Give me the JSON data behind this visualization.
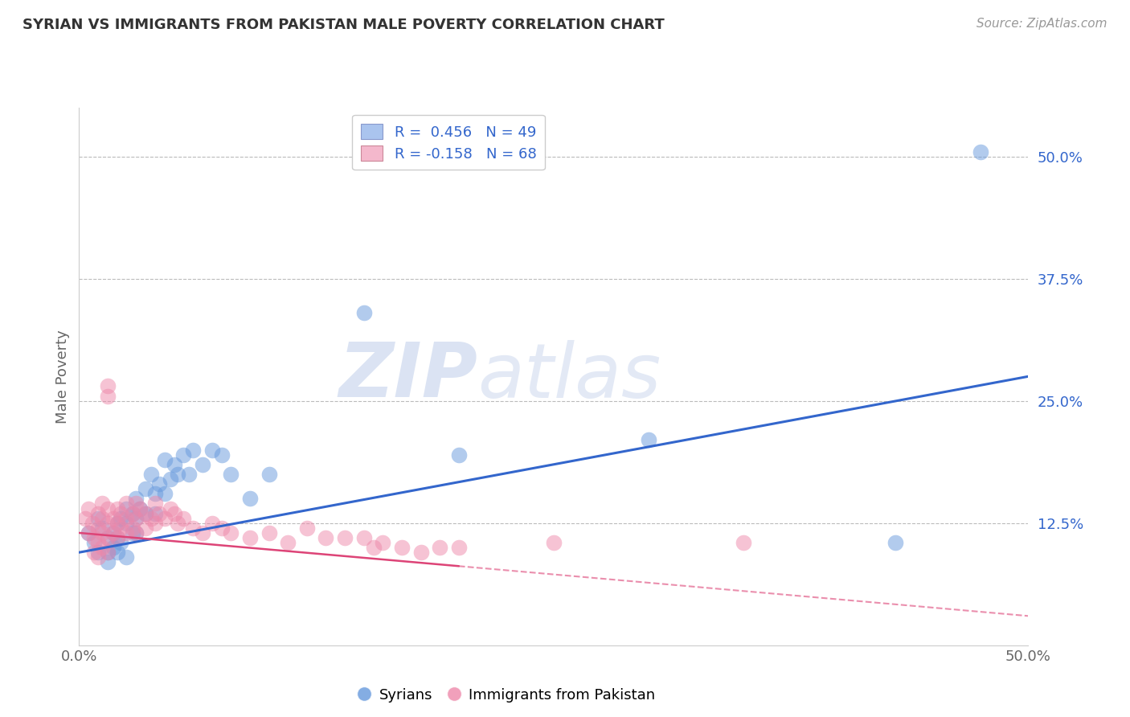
{
  "title": "SYRIAN VS IMMIGRANTS FROM PAKISTAN MALE POVERTY CORRELATION CHART",
  "source": "Source: ZipAtlas.com",
  "ylabel": "Male Poverty",
  "ytick_labels": [
    "12.5%",
    "25.0%",
    "37.5%",
    "50.0%"
  ],
  "ytick_values": [
    0.125,
    0.25,
    0.375,
    0.5
  ],
  "xlim": [
    0.0,
    0.5
  ],
  "ylim": [
    0.0,
    0.55
  ],
  "blue_line_start": 0.095,
  "blue_line_end": 0.275,
  "pink_line_start_solid": 0.115,
  "pink_line_end_solid": 0.1,
  "pink_line_end_solid_x": 0.2,
  "pink_line_start_dash": 0.1,
  "pink_line_end_dash": 0.03,
  "blue_color": "#6699dd",
  "pink_color": "#ee88aa",
  "blue_line_color": "#3366cc",
  "pink_line_color": "#dd4477",
  "watermark_zip": "ZIP",
  "watermark_atlas": "atlas",
  "syrian_scatter": [
    [
      0.005,
      0.115
    ],
    [
      0.008,
      0.105
    ],
    [
      0.01,
      0.13
    ],
    [
      0.01,
      0.095
    ],
    [
      0.012,
      0.12
    ],
    [
      0.015,
      0.11
    ],
    [
      0.015,
      0.095
    ],
    [
      0.015,
      0.085
    ],
    [
      0.018,
      0.115
    ],
    [
      0.018,
      0.1
    ],
    [
      0.02,
      0.125
    ],
    [
      0.02,
      0.11
    ],
    [
      0.02,
      0.095
    ],
    [
      0.022,
      0.13
    ],
    [
      0.022,
      0.105
    ],
    [
      0.025,
      0.14
    ],
    [
      0.025,
      0.125
    ],
    [
      0.025,
      0.09
    ],
    [
      0.028,
      0.135
    ],
    [
      0.028,
      0.115
    ],
    [
      0.03,
      0.15
    ],
    [
      0.03,
      0.13
    ],
    [
      0.03,
      0.115
    ],
    [
      0.032,
      0.14
    ],
    [
      0.035,
      0.16
    ],
    [
      0.035,
      0.135
    ],
    [
      0.038,
      0.175
    ],
    [
      0.04,
      0.155
    ],
    [
      0.04,
      0.135
    ],
    [
      0.042,
      0.165
    ],
    [
      0.045,
      0.19
    ],
    [
      0.045,
      0.155
    ],
    [
      0.048,
      0.17
    ],
    [
      0.05,
      0.185
    ],
    [
      0.052,
      0.175
    ],
    [
      0.055,
      0.195
    ],
    [
      0.058,
      0.175
    ],
    [
      0.06,
      0.2
    ],
    [
      0.065,
      0.185
    ],
    [
      0.07,
      0.2
    ],
    [
      0.075,
      0.195
    ],
    [
      0.08,
      0.175
    ],
    [
      0.09,
      0.15
    ],
    [
      0.1,
      0.175
    ],
    [
      0.15,
      0.34
    ],
    [
      0.2,
      0.195
    ],
    [
      0.3,
      0.21
    ],
    [
      0.43,
      0.105
    ],
    [
      0.475,
      0.505
    ]
  ],
  "pakistan_scatter": [
    [
      0.003,
      0.13
    ],
    [
      0.005,
      0.14
    ],
    [
      0.005,
      0.115
    ],
    [
      0.007,
      0.125
    ],
    [
      0.008,
      0.11
    ],
    [
      0.008,
      0.095
    ],
    [
      0.01,
      0.135
    ],
    [
      0.01,
      0.12
    ],
    [
      0.01,
      0.105
    ],
    [
      0.01,
      0.09
    ],
    [
      0.012,
      0.145
    ],
    [
      0.012,
      0.13
    ],
    [
      0.012,
      0.115
    ],
    [
      0.012,
      0.1
    ],
    [
      0.015,
      0.265
    ],
    [
      0.015,
      0.255
    ],
    [
      0.015,
      0.14
    ],
    [
      0.015,
      0.125
    ],
    [
      0.015,
      0.11
    ],
    [
      0.015,
      0.095
    ],
    [
      0.018,
      0.13
    ],
    [
      0.018,
      0.115
    ],
    [
      0.02,
      0.14
    ],
    [
      0.02,
      0.125
    ],
    [
      0.02,
      0.11
    ],
    [
      0.022,
      0.135
    ],
    [
      0.022,
      0.12
    ],
    [
      0.025,
      0.145
    ],
    [
      0.025,
      0.13
    ],
    [
      0.025,
      0.115
    ],
    [
      0.028,
      0.135
    ],
    [
      0.028,
      0.12
    ],
    [
      0.03,
      0.145
    ],
    [
      0.03,
      0.13
    ],
    [
      0.03,
      0.115
    ],
    [
      0.032,
      0.14
    ],
    [
      0.035,
      0.135
    ],
    [
      0.035,
      0.12
    ],
    [
      0.038,
      0.13
    ],
    [
      0.04,
      0.145
    ],
    [
      0.04,
      0.125
    ],
    [
      0.042,
      0.135
    ],
    [
      0.045,
      0.13
    ],
    [
      0.048,
      0.14
    ],
    [
      0.05,
      0.135
    ],
    [
      0.052,
      0.125
    ],
    [
      0.055,
      0.13
    ],
    [
      0.06,
      0.12
    ],
    [
      0.065,
      0.115
    ],
    [
      0.07,
      0.125
    ],
    [
      0.075,
      0.12
    ],
    [
      0.08,
      0.115
    ],
    [
      0.09,
      0.11
    ],
    [
      0.1,
      0.115
    ],
    [
      0.11,
      0.105
    ],
    [
      0.12,
      0.12
    ],
    [
      0.13,
      0.11
    ],
    [
      0.14,
      0.11
    ],
    [
      0.15,
      0.11
    ],
    [
      0.155,
      0.1
    ],
    [
      0.16,
      0.105
    ],
    [
      0.17,
      0.1
    ],
    [
      0.18,
      0.095
    ],
    [
      0.19,
      0.1
    ],
    [
      0.2,
      0.1
    ],
    [
      0.25,
      0.105
    ],
    [
      0.35,
      0.105
    ]
  ]
}
